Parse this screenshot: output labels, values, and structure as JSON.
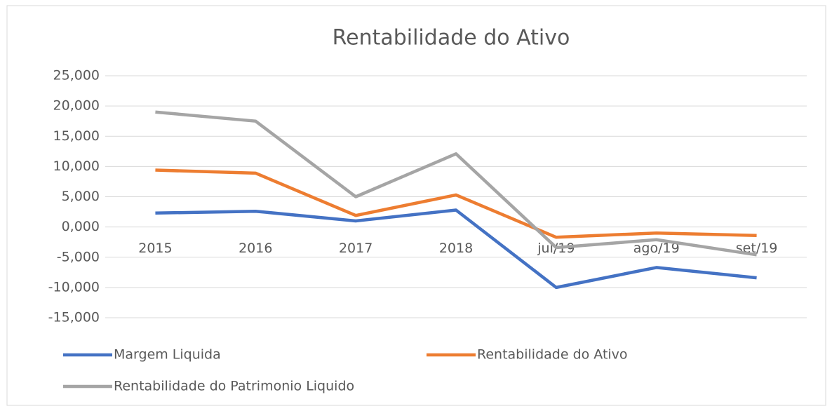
{
  "chart_data": {
    "type": "line",
    "title": "Rentabilidade do Ativo",
    "categories": [
      "2015",
      "2016",
      "2017",
      "2018",
      "jul/19",
      "ago/19",
      "set/19"
    ],
    "series": [
      {
        "name": "Margem Liquida",
        "color": "#4472c4",
        "values": [
          2.3,
          2.6,
          1.0,
          2.8,
          -10.0,
          -6.7,
          -8.4
        ]
      },
      {
        "name": "Rentabilidade do Ativo",
        "color": "#ed7d31",
        "values": [
          9.4,
          8.9,
          1.9,
          5.3,
          -1.7,
          -1.0,
          -1.4
        ]
      },
      {
        "name": "Rentabilidade do Patrimonio Liquido",
        "color": "#a5a5a5",
        "values": [
          19.0,
          17.5,
          5.0,
          12.1,
          -3.4,
          -2.1,
          -4.6
        ]
      }
    ],
    "ylim": [
      -15,
      25
    ],
    "yticks": [
      {
        "value": -15,
        "label": "-15,000"
      },
      {
        "value": -10,
        "label": "-10,000"
      },
      {
        "value": -5,
        "label": "-5,000"
      },
      {
        "value": 0,
        "label": "0,000"
      },
      {
        "value": 5,
        "label": "5,000"
      },
      {
        "value": 10,
        "label": "10,000"
      },
      {
        "value": 15,
        "label": "15,000"
      },
      {
        "value": 20,
        "label": "20,000"
      },
      {
        "value": 25,
        "label": "25,000"
      }
    ],
    "grid": true,
    "legend": "bottom"
  }
}
